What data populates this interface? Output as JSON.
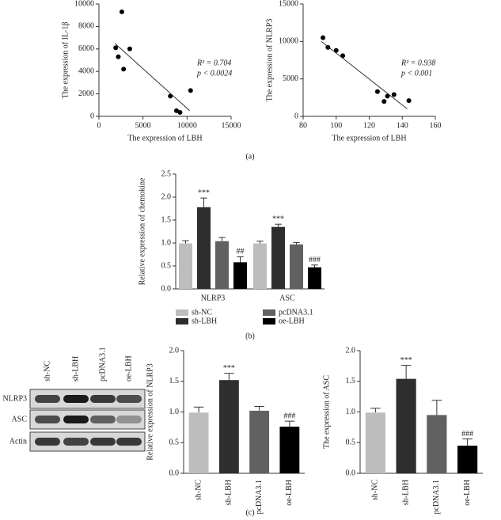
{
  "chart_data": [
    {
      "type": "scatter",
      "xlabel": "The expression of LBH",
      "ylabel": "The expression of IL-1β",
      "x": [
        1900,
        2200,
        2600,
        2800,
        3500,
        8100,
        8800,
        9200,
        10400
      ],
      "y": [
        6100,
        5300,
        9300,
        4200,
        6000,
        1800,
        500,
        350,
        2300
      ],
      "trendline": {
        "x": [
          1800,
          10300
        ],
        "y": [
          6500,
          500
        ]
      },
      "annotations": [
        "R² = 0.704",
        "p < 0.0024"
      ],
      "xlim": [
        0,
        15000
      ],
      "xticks": [
        0,
        5000,
        10000,
        15000
      ],
      "ylim": [
        0,
        10000
      ],
      "yticks": [
        0,
        2000,
        4000,
        6000,
        8000,
        10000
      ],
      "color": "#000000"
    },
    {
      "type": "scatter",
      "xlabel": "The expression of LBH",
      "ylabel": "The expression of NLRP3",
      "x": [
        92,
        95,
        100,
        104,
        125,
        129,
        131,
        135,
        144
      ],
      "y": [
        10500,
        9200,
        8800,
        8100,
        3300,
        2000,
        2700,
        2900,
        2100
      ],
      "trendline": {
        "x": [
          91,
          143
        ],
        "y": [
          10000,
          1000
        ]
      },
      "annotations": [
        "R² = 0.938",
        "p < 0.001"
      ],
      "xlim": [
        80,
        160
      ],
      "xticks": [
        80,
        100,
        120,
        140,
        160
      ],
      "ylim": [
        0,
        15000
      ],
      "yticks": [
        0,
        5000,
        10000,
        15000
      ],
      "color": "#000000"
    },
    {
      "type": "bar",
      "ylabel": "Relative expression of chemokine",
      "categories": [
        "NLRP3",
        "ASC"
      ],
      "series": [
        {
          "name": "sh-NC",
          "color": "#bdbdbd",
          "values": [
            0.99,
            0.99
          ],
          "errors": [
            0.06,
            0.05
          ]
        },
        {
          "name": "sh-LBH",
          "color": "#2e2e2e",
          "values": [
            1.78,
            1.35
          ],
          "errors": [
            0.2,
            0.06
          ],
          "significance": [
            "***",
            "***"
          ]
        },
        {
          "name": "pcDNA3.1",
          "color": "#616161",
          "values": [
            1.04,
            0.97
          ],
          "errors": [
            0.08,
            0.04
          ]
        },
        {
          "name": "oe-LBH",
          "color": "#000000",
          "values": [
            0.58,
            0.47
          ],
          "errors": [
            0.12,
            0.05
          ],
          "significance": [
            "##",
            "###"
          ]
        }
      ],
      "ylim": [
        0,
        2.5
      ],
      "yticks": [
        {
          "value": 0,
          "label": "0.0"
        },
        0.5,
        {
          "value": 1,
          "label": "1.0"
        },
        1.5,
        {
          "value": 2,
          "label": "2.0"
        },
        2.5
      ]
    },
    {
      "type": "bar",
      "ylabel": "Relative expression of NLRP3",
      "categories": [
        "sh-NC",
        "sh-LBH",
        "pcDNA3.1",
        "oe-LBH"
      ],
      "values": [
        0.99,
        1.52,
        1.02,
        0.76
      ],
      "errors": [
        0.09,
        0.11,
        0.07,
        0.09
      ],
      "colors": [
        "#bdbdbd",
        "#2e2e2e",
        "#616161",
        "#000000"
      ],
      "significance": [
        null,
        "***",
        null,
        "###"
      ],
      "ylim": [
        0,
        2
      ],
      "yticks": [
        {
          "value": 0,
          "label": "0.0"
        },
        0.5,
        {
          "value": 1,
          "label": "1.0"
        },
        1.5,
        {
          "value": 2,
          "label": "2.0"
        }
      ]
    },
    {
      "type": "bar",
      "ylabel": "The expression of ASC",
      "categories": [
        "sh-NC",
        "sh-LBH",
        "pcDNA3.1",
        "oe-LBH"
      ],
      "values": [
        0.99,
        1.54,
        0.95,
        0.45
      ],
      "errors": [
        0.07,
        0.22,
        0.24,
        0.11
      ],
      "colors": [
        "#bdbdbd",
        "#2e2e2e",
        "#616161",
        "#000000"
      ],
      "significance": [
        null,
        "***",
        null,
        "###"
      ],
      "ylim": [
        0,
        2
      ],
      "yticks": [
        {
          "value": 0,
          "label": "0.0"
        },
        0.5,
        {
          "value": 1,
          "label": "1.0"
        },
        1.5,
        {
          "value": 2,
          "label": "2.0"
        }
      ]
    }
  ],
  "blot": {
    "lanes": [
      "sh-NC",
      "sh-LBH",
      "pcDNA3.1",
      "oe-LBH"
    ],
    "rows": [
      "NLRP3",
      "ASC",
      "Actin"
    ]
  },
  "panels": [
    "(a)",
    "(b)",
    "(c)"
  ]
}
